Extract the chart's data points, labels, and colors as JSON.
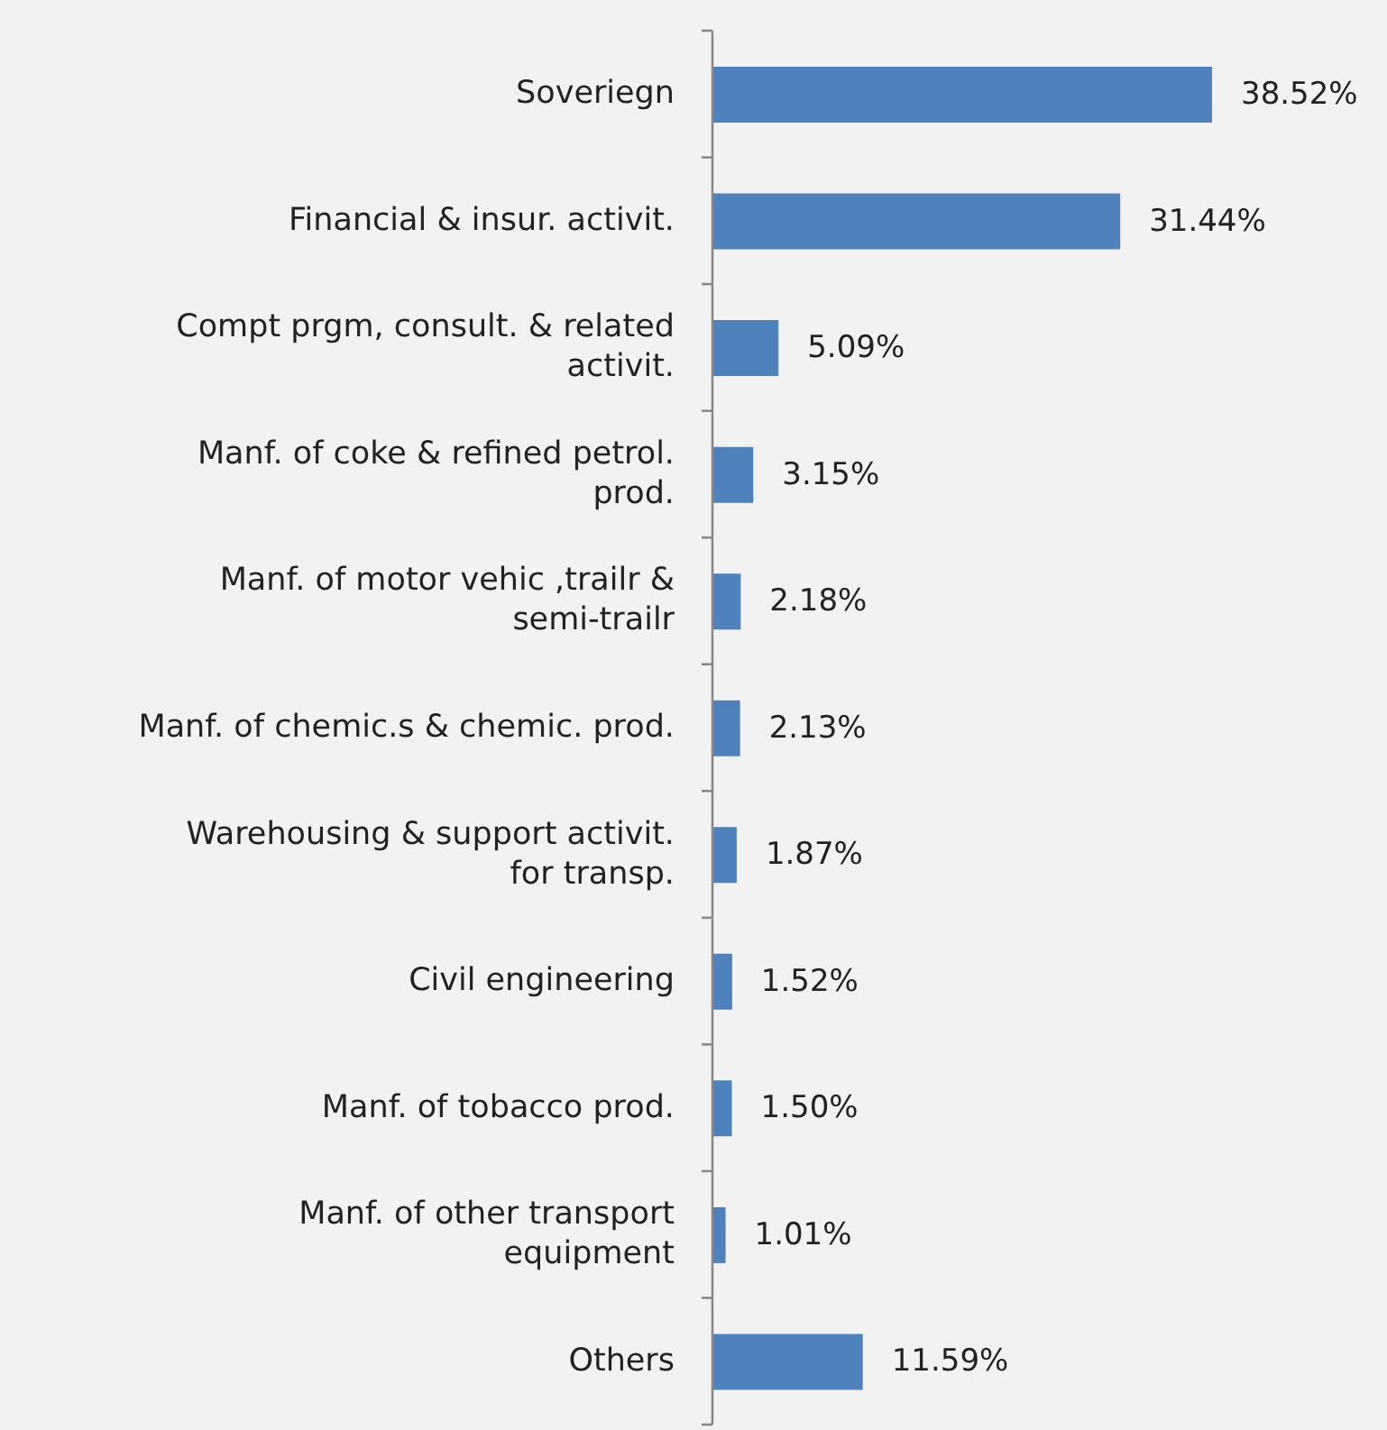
{
  "chart_data": {
    "type": "bar",
    "orientation": "horizontal",
    "categories": [
      "Soveriegn",
      "Financial & insur. activit.",
      "Compt prgm, consult. & related activit.",
      "Manf. of coke & refined petrol. prod.",
      "Manf. of motor vehic ,trailr & semi-trailr",
      "Manf. of chemic.s & chemic. prod.",
      "Warehousing & support activit. for transp.",
      "Civil engineering",
      "Manf. of tobacco prod.",
      "Manf. of other transport equipment",
      "Others"
    ],
    "values": [
      38.52,
      31.44,
      5.09,
      3.15,
      2.18,
      2.13,
      1.87,
      1.52,
      1.5,
      1.01,
      11.59
    ],
    "value_labels": [
      "38.52%",
      "31.44%",
      "5.09%",
      "3.15%",
      "2.18%",
      "2.13%",
      "1.87%",
      "1.52%",
      "1.50%",
      "1.01%",
      "11.59%"
    ],
    "color": "#4f81bd"
  }
}
